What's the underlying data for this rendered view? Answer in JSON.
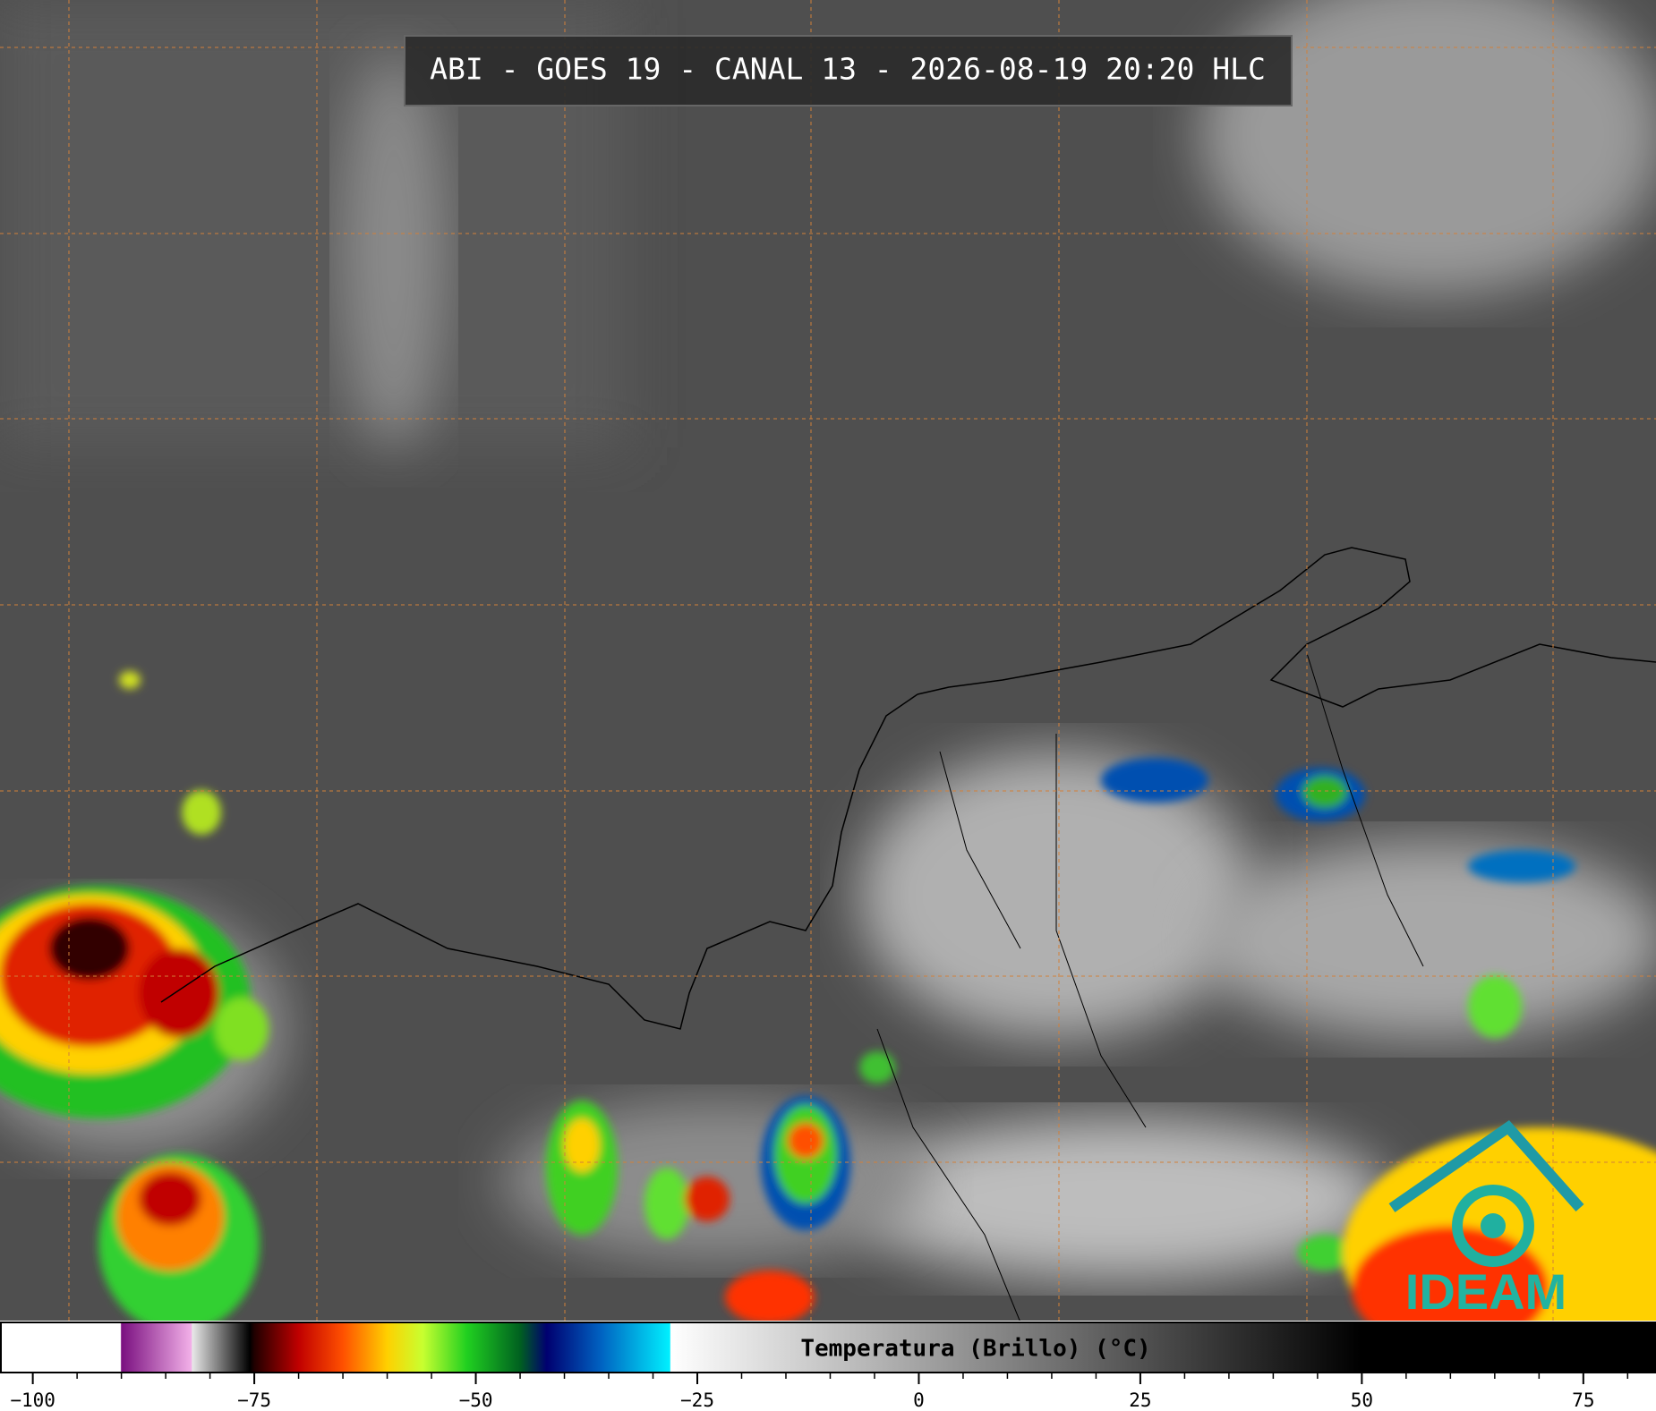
{
  "header": {
    "title": "ABI - GOES 19 - CANAL 13 - 2026-08-19 20:20 HLC"
  },
  "colorbar": {
    "label": "Temperatura (Brillo) (°C)",
    "xlim": [
      -103.6,
      83.1
    ],
    "xticks": [
      {
        "value": -100,
        "label": "−100"
      },
      {
        "value": -75,
        "label": "−75"
      },
      {
        "value": -50,
        "label": "−50"
      },
      {
        "value": -25,
        "label": "−25"
      },
      0,
      25,
      50,
      75
    ],
    "minor_ticks": [
      -95,
      -90,
      -85,
      -80,
      -70,
      -65,
      -60,
      -55,
      -45,
      -40,
      -35,
      -30,
      -20,
      -15,
      -10,
      -5,
      5,
      10,
      15,
      20,
      30,
      35,
      40,
      45,
      55,
      60,
      65,
      70,
      80
    ],
    "colormap": [
      {
        "value": -103.6,
        "color": "#ffffff"
      },
      {
        "value": -90.1,
        "color": "#ffffff"
      },
      {
        "value": -90,
        "color": "#7a1080"
      },
      {
        "value": -82.1,
        "color": "#f2b0e8"
      },
      {
        "value": -82,
        "color": "#e8e8e8"
      },
      {
        "value": -75.5,
        "color": "#000000"
      },
      {
        "value": -75,
        "color": "#200000"
      },
      {
        "value": -70,
        "color": "#c00000"
      },
      {
        "value": -65,
        "color": "#ff5000"
      },
      {
        "value": -60,
        "color": "#ffd000"
      },
      {
        "value": -56,
        "color": "#c8ff30"
      },
      {
        "value": -51,
        "color": "#20d020"
      },
      {
        "value": -45,
        "color": "#006020"
      },
      {
        "value": -42,
        "color": "#000070"
      },
      {
        "value": -36,
        "color": "#0060c0"
      },
      {
        "value": -28.1,
        "color": "#00f0ff"
      },
      {
        "value": -28,
        "color": "#ffffff"
      },
      {
        "value": 50,
        "color": "#000000"
      },
      {
        "value": 83.1,
        "color": "#000000"
      }
    ]
  },
  "logo": {
    "text": "IDEAM"
  }
}
